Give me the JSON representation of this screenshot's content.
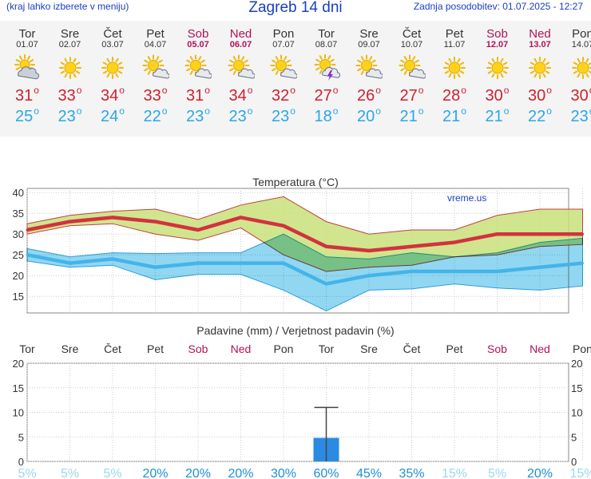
{
  "header": {
    "left_note": "(kraj lahko izberete v meniju)",
    "title": "Zagreb 14 dni",
    "updated": "Zadnja posodobitev: 01.07.2025 - 12:27"
  },
  "days": [
    {
      "name": "Tor",
      "date": "01.07",
      "weekend": false,
      "icon": "sun-cloud-icon",
      "max": "31",
      "min": "25"
    },
    {
      "name": "Sre",
      "date": "02.07",
      "weekend": false,
      "icon": "sun-icon",
      "max": "33",
      "min": "23"
    },
    {
      "name": "Čet",
      "date": "03.07",
      "weekend": false,
      "icon": "sun-icon",
      "max": "34",
      "min": "24"
    },
    {
      "name": "Pet",
      "date": "04.07",
      "weekend": false,
      "icon": "sun-small-cloud-icon",
      "max": "33",
      "min": "22"
    },
    {
      "name": "Sob",
      "date": "05.07",
      "weekend": true,
      "icon": "sun-small-cloud-icon",
      "max": "31",
      "min": "23"
    },
    {
      "name": "Ned",
      "date": "06.07",
      "weekend": true,
      "icon": "sun-small-cloud-icon",
      "max": "34",
      "min": "23"
    },
    {
      "name": "Pon",
      "date": "07.07",
      "weekend": false,
      "icon": "sun-small-cloud-icon",
      "max": "32",
      "min": "23"
    },
    {
      "name": "Tor",
      "date": "08.07",
      "weekend": false,
      "icon": "sun-thunder-icon",
      "max": "27",
      "min": "18"
    },
    {
      "name": "Sre",
      "date": "09.07",
      "weekend": false,
      "icon": "sun-small-cloud-icon",
      "max": "26",
      "min": "20"
    },
    {
      "name": "Čet",
      "date": "10.07",
      "weekend": false,
      "icon": "sun-small-cloud-icon",
      "max": "27",
      "min": "21"
    },
    {
      "name": "Pet",
      "date": "11.07",
      "weekend": false,
      "icon": "sun-icon",
      "max": "28",
      "min": "21"
    },
    {
      "name": "Sob",
      "date": "12.07",
      "weekend": true,
      "icon": "sun-icon",
      "max": "30",
      "min": "21"
    },
    {
      "name": "Ned",
      "date": "13.07",
      "weekend": true,
      "icon": "sun-icon",
      "max": "30",
      "min": "22"
    },
    {
      "name": "Pon",
      "date": "14.07",
      "weekend": false,
      "icon": "sun-icon",
      "max": "30",
      "min": "23"
    }
  ],
  "colors": {
    "weekend": "#b0125b",
    "max_line": "#d2323f",
    "min_line": "#44b4ea",
    "max_band": "#c8e07a",
    "min_band": "#7fd0ee",
    "precip_bar": "#2b8be2",
    "prob_high": "#1d8fd8",
    "prob_low": "#9ad8f2"
  },
  "chart_data": [
    {
      "type": "area",
      "title": "Temperatura (°C)",
      "watermark": "vreme.us",
      "categories": [
        "Tor",
        "Sre",
        "Čet",
        "Pet",
        "Sob",
        "Ned",
        "Pon",
        "Tor",
        "Sre",
        "Čet",
        "Pet",
        "Sob",
        "Ned",
        "Pon"
      ],
      "ylim": [
        11,
        41
      ],
      "yticks": [
        15,
        20,
        25,
        30,
        35,
        40
      ],
      "grid": true,
      "series": [
        {
          "key": "max",
          "values": [
            31,
            33,
            34,
            33,
            31,
            34,
            32,
            27,
            26,
            27,
            28,
            30,
            30,
            30
          ]
        },
        {
          "key": "min",
          "values": [
            25,
            23,
            24,
            22,
            23,
            23,
            23,
            18,
            20,
            21,
            21,
            21,
            22,
            23
          ]
        },
        {
          "key": "max_upper",
          "values": [
            32.5,
            34.5,
            35.5,
            36,
            33.5,
            37,
            39,
            33,
            30,
            31,
            31,
            34.5,
            36,
            36
          ]
        },
        {
          "key": "max_lower",
          "values": [
            30,
            32,
            32.5,
            30,
            28.5,
            31.5,
            25,
            21,
            22,
            22.5,
            24.5,
            25,
            27,
            27.5
          ]
        },
        {
          "key": "min_upper",
          "values": [
            26.5,
            24.5,
            25.5,
            25.3,
            25.5,
            25.5,
            30,
            24.5,
            24,
            25.5,
            24.5,
            25.5,
            28,
            29
          ]
        },
        {
          "key": "min_lower",
          "values": [
            23.5,
            22,
            22.5,
            19,
            20.3,
            20.3,
            16.5,
            11.5,
            16.5,
            16.8,
            18,
            17,
            16.5,
            17.5
          ]
        }
      ]
    },
    {
      "type": "bar",
      "title": "Padavine (mm) / Verjetnost padavin (%)",
      "categories": [
        "Tor",
        "Sre",
        "Čet",
        "Pet",
        "Sob",
        "Ned",
        "Pon",
        "Tor",
        "Sre",
        "Čet",
        "Pet",
        "Sob",
        "Ned",
        "Pon"
      ],
      "ylim": [
        0,
        20
      ],
      "yticks": [
        0,
        5,
        10,
        15,
        20
      ],
      "values": [
        0,
        0,
        0,
        0,
        0,
        0,
        0,
        4.8,
        0,
        0,
        0,
        0,
        0,
        0
      ],
      "error_high": [
        0,
        0,
        0,
        0,
        0,
        0,
        0,
        11,
        0,
        0,
        0,
        0,
        0,
        0
      ],
      "probability": [
        "5%",
        "5%",
        "5%",
        "20%",
        "20%",
        "20%",
        "30%",
        "60%",
        "45%",
        "35%",
        "15%",
        "5%",
        "20%",
        "15%"
      ]
    }
  ]
}
